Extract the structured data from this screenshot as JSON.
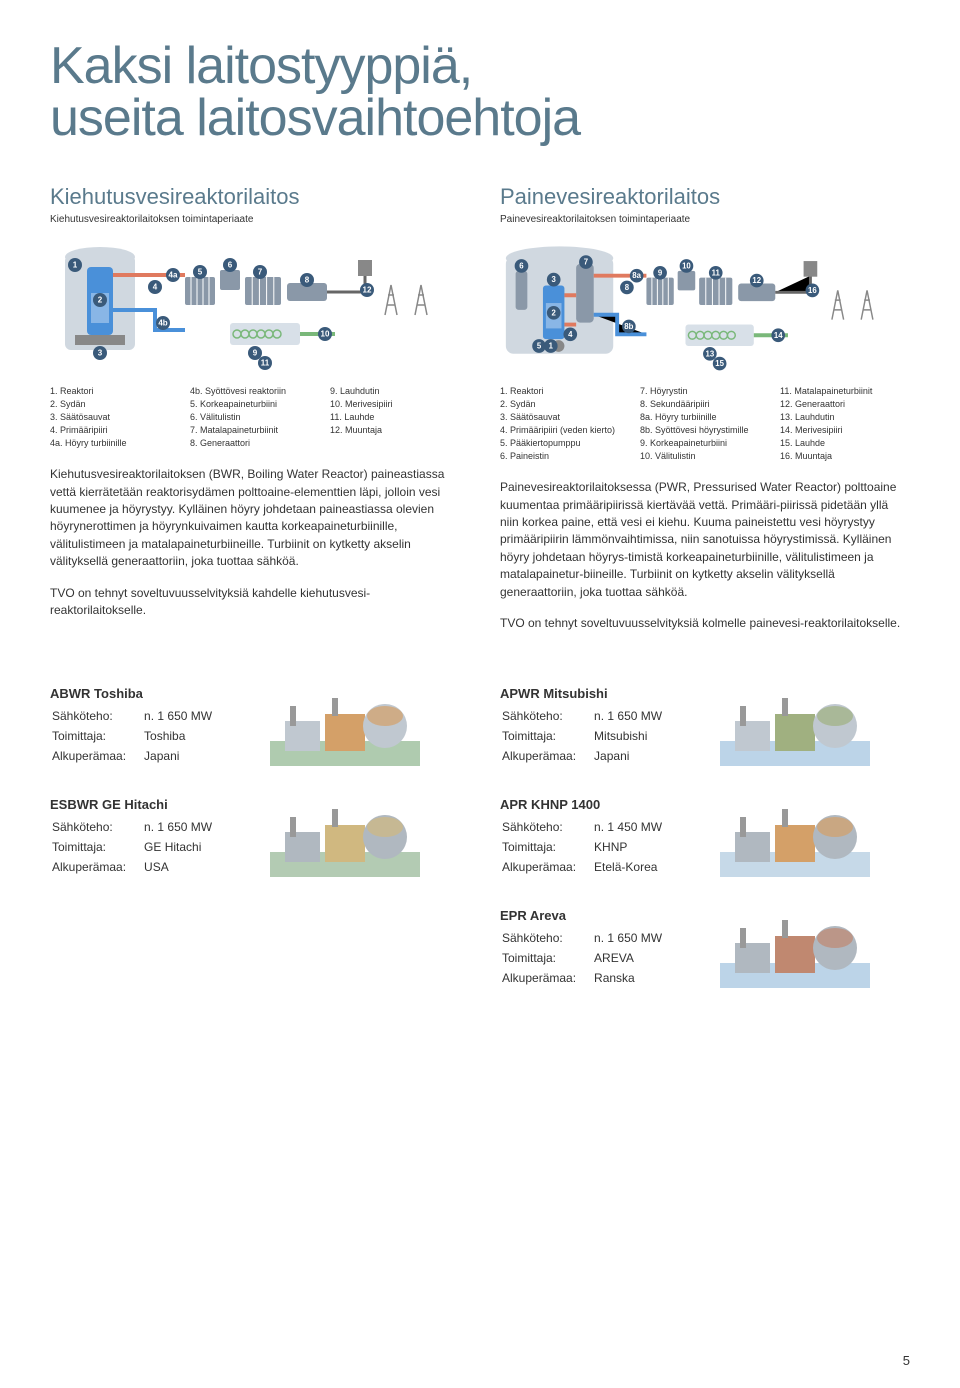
{
  "title_line1": "Kaksi laitostyyppiä,",
  "title_line2": "useita laitosvaihtoehtoja",
  "page_number": "5",
  "bwr": {
    "heading": "Kiehutusvesireaktorilaitos",
    "sub": "Kiehutusvesireaktorilaitoksen toimintaperiaate",
    "legend": [
      "1.  Reaktori",
      "2.  Sydän",
      "3.  Säätösauvat",
      "4.  Primääripiiri",
      "4a. Höyry turbiinille",
      "4b. Syöttövesi reaktoriin",
      "5.  Korkeapaineturbiini",
      "6.  Välitulistin",
      "7.  Matalapaineturbiinit",
      "8.  Generaattori",
      "9.  Lauhdutin",
      "10. Merivesipiiri",
      "11. Lauhde",
      "12. Muuntaja"
    ],
    "desc": [
      "Kiehutusvesireaktorilaitoksen (BWR, Boiling Water Reactor) paineastiassa vettä kierrätetään reaktorisydämen polttoaine-elementtien läpi, jolloin vesi kuumenee ja höyrystyy. Kylläinen höyry johdetaan paineastiassa olevien höyrynerottimen ja höyrynkuivaimen kautta korkeapaineturbiinille, välitulistimeen ja matalapaineturbiineille. Turbiinit on kytketty akselin välityksellä generaattoriin, joka tuottaa sähköä.",
      "TVO on tehnyt soveltuvuusselvityksiä kahdelle kiehutusvesi-reaktorilaitokselle."
    ],
    "diagram": {
      "type": "schematic",
      "reactor_color": "#4a90d9",
      "containment_color": "#d0d8e0",
      "pipe_steam": "#e07a5f",
      "pipe_water": "#4a90d9",
      "pipe_cooling": "#7ab87a",
      "turbine_color": "#8a98a8",
      "badge_bg": "#3a5a7a",
      "badge_fg": "#ffffff",
      "badges": [
        "1",
        "2",
        "3",
        "4",
        "4a",
        "4b",
        "5",
        "6",
        "7",
        "8",
        "9",
        "10",
        "11",
        "12"
      ]
    }
  },
  "pwr": {
    "heading": "Painevesireaktorilaitos",
    "sub": "Painevesireaktorilaitoksen toimintaperiaate",
    "legend": [
      "1.  Reaktori",
      "2.  Sydän",
      "3.  Säätösauvat",
      "4.  Primääripiiri (veden kierto)",
      "5.  Pääkiertopumppu",
      "6.  Paineistin",
      "7.  Höyrystin",
      "8.  Sekundääripiiri",
      "8a. Höyry turbiinille",
      "8b. Syöttövesi höyrystimille",
      "9.  Korkeapaineturbiini",
      "10. Välitulistin",
      "11. Matalapaineturbiinit",
      "12. Generaattori",
      "13. Lauhdutin",
      "14. Merivesipiiri",
      "15. Lauhde",
      "16. Muuntaja"
    ],
    "desc": [
      "Painevesireaktorilaitoksessa (PWR, Pressurised Water Reactor) polttoaine kuumentaa primääripiirissä kiertävää vettä. Primääri-piirissä pidetään yllä niin korkea paine, että vesi ei kiehu. Kuuma paineistettu vesi höyrystyy primääripiirin lämmönvaihtimissa, niin sanotuissa höyrystimissä. Kylläinen höyry johdetaan höyrys-timistä korkeapaineturbiinille, välitulistimeen ja matalapainetur-biineille. Turbiinit on kytketty akselin välityksellä generaattoriin, joka tuottaa sähköä.",
      "TVO on tehnyt soveltuvuusselvityksiä kolmelle painevesi-reaktorilaitokselle."
    ],
    "diagram": {
      "type": "schematic",
      "reactor_color": "#4a90d9",
      "sg_color": "#8a98a8",
      "containment_color": "#d0d8e0",
      "pipe_primary": "#e07a5f",
      "pipe_secondary": "#4a90d9",
      "pipe_cooling": "#7ab87a",
      "turbine_color": "#8a98a8",
      "badge_bg": "#3a5a7a",
      "badge_fg": "#ffffff",
      "badges": [
        "1",
        "2",
        "3",
        "4",
        "5",
        "6",
        "7",
        "8",
        "8a",
        "8b",
        "9",
        "10",
        "11",
        "12",
        "13",
        "14",
        "15",
        "16"
      ]
    }
  },
  "labels": {
    "sahkoeho": "Sähköteho:",
    "toimittaja": "Toimittaja:",
    "alkuperamaa": "Alkuperämaa:"
  },
  "plants": [
    {
      "col": "left",
      "name": "ABWR Toshiba",
      "power": "n. 1 650 MW",
      "supplier": "Toshiba",
      "country": "Japani",
      "img_colors": [
        "#7aa87a",
        "#d4a068",
        "#c0c8d0"
      ]
    },
    {
      "col": "right",
      "name": "APWR Mitsubishi",
      "power": "n. 1 650 MW",
      "supplier": "Mitsubishi",
      "country": "Japani",
      "img_colors": [
        "#90b8d8",
        "#a0b080",
        "#c0c8d0"
      ]
    },
    {
      "col": "left",
      "name": "ESBWR GE Hitachi",
      "power": "n. 1 650 MW",
      "supplier": "GE Hitachi",
      "country": "USA",
      "img_colors": [
        "#80a880",
        "#d0b880",
        "#b0b8c0"
      ]
    },
    {
      "col": "right",
      "name": "APR KHNP 1400",
      "power": "n. 1 450 MW",
      "supplier": "KHNP",
      "country": "Etelä-Korea",
      "img_colors": [
        "#a0c0d8",
        "#d4a068",
        "#b0b8c0"
      ]
    },
    {
      "col": "right",
      "name": "EPR Areva",
      "power": "n. 1 650 MW",
      "supplier": "AREVA",
      "country": "Ranska",
      "img_colors": [
        "#90b8d8",
        "#c08870",
        "#b0b8c0"
      ]
    }
  ]
}
